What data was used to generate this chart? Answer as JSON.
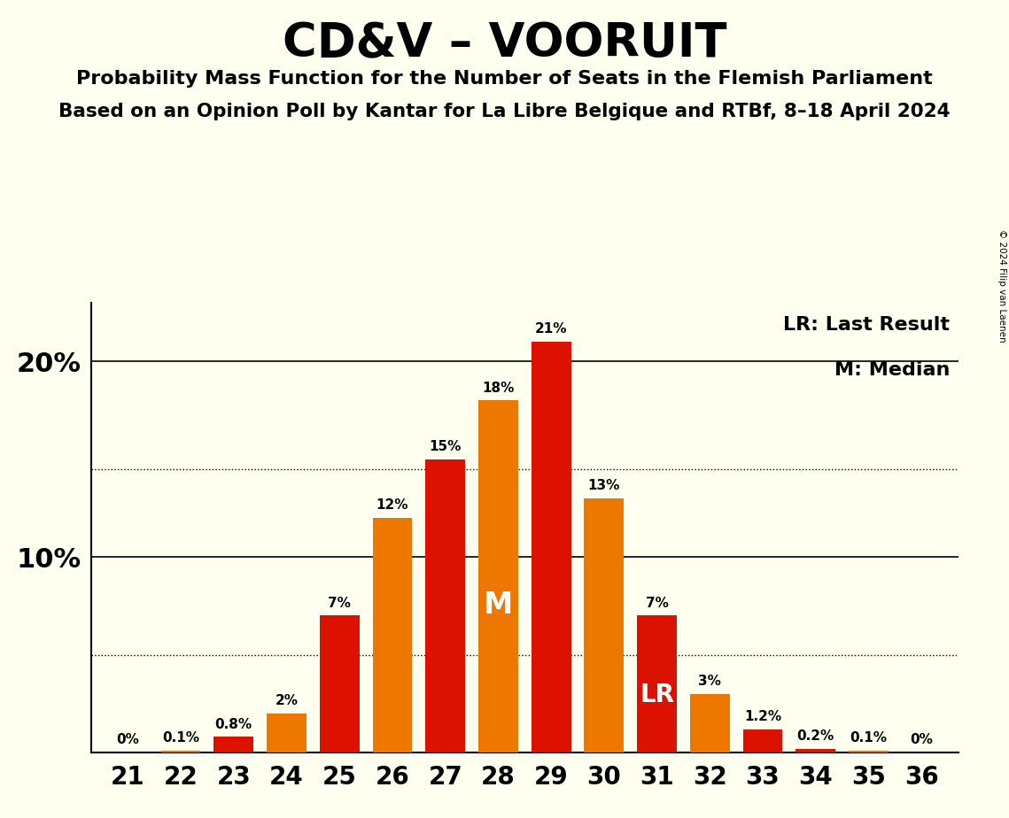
{
  "title": "CD&V – VOORUIT",
  "subtitle1": "Probability Mass Function for the Number of Seats in the Flemish Parliament",
  "subtitle2": "Based on an Opinion Poll by Kantar for La Libre Belgique and RTBf, 8–18 April 2024",
  "copyright": "© 2024 Filip van Laenen",
  "legend_lr": "LR: Last Result",
  "legend_m": "M: Median",
  "seats": [
    21,
    22,
    23,
    24,
    25,
    26,
    27,
    28,
    29,
    30,
    31,
    32,
    33,
    34,
    35,
    36
  ],
  "values": [
    0.0,
    0.1,
    0.8,
    2.0,
    7.0,
    12.0,
    15.0,
    18.0,
    21.0,
    13.0,
    7.0,
    3.0,
    1.2,
    0.2,
    0.1,
    0.0
  ],
  "colors": [
    "#dd1100",
    "#ee7700",
    "#dd1100",
    "#ee7700",
    "#dd1100",
    "#ee7700",
    "#dd1100",
    "#ee7700",
    "#dd1100",
    "#ee7700",
    "#dd1100",
    "#ee7700",
    "#dd1100",
    "#dd1100",
    "#ee7700",
    "#dd1100"
  ],
  "labels": [
    "0%",
    "0.1%",
    "0.8%",
    "2%",
    "7%",
    "12%",
    "15%",
    "18%",
    "21%",
    "13%",
    "7%",
    "3%",
    "1.2%",
    "0.2%",
    "0.1%",
    "0%"
  ],
  "median_seat": 28,
  "lr_seat": 31,
  "background_color": "#fffff0",
  "ylim": [
    0,
    23
  ],
  "dotted_lines": [
    5.0,
    14.5
  ],
  "solid_lines": [
    10.0,
    20.0
  ],
  "ytick_positions": [
    10.0,
    20.0
  ],
  "ytick_labels": [
    "10%",
    "20%"
  ]
}
